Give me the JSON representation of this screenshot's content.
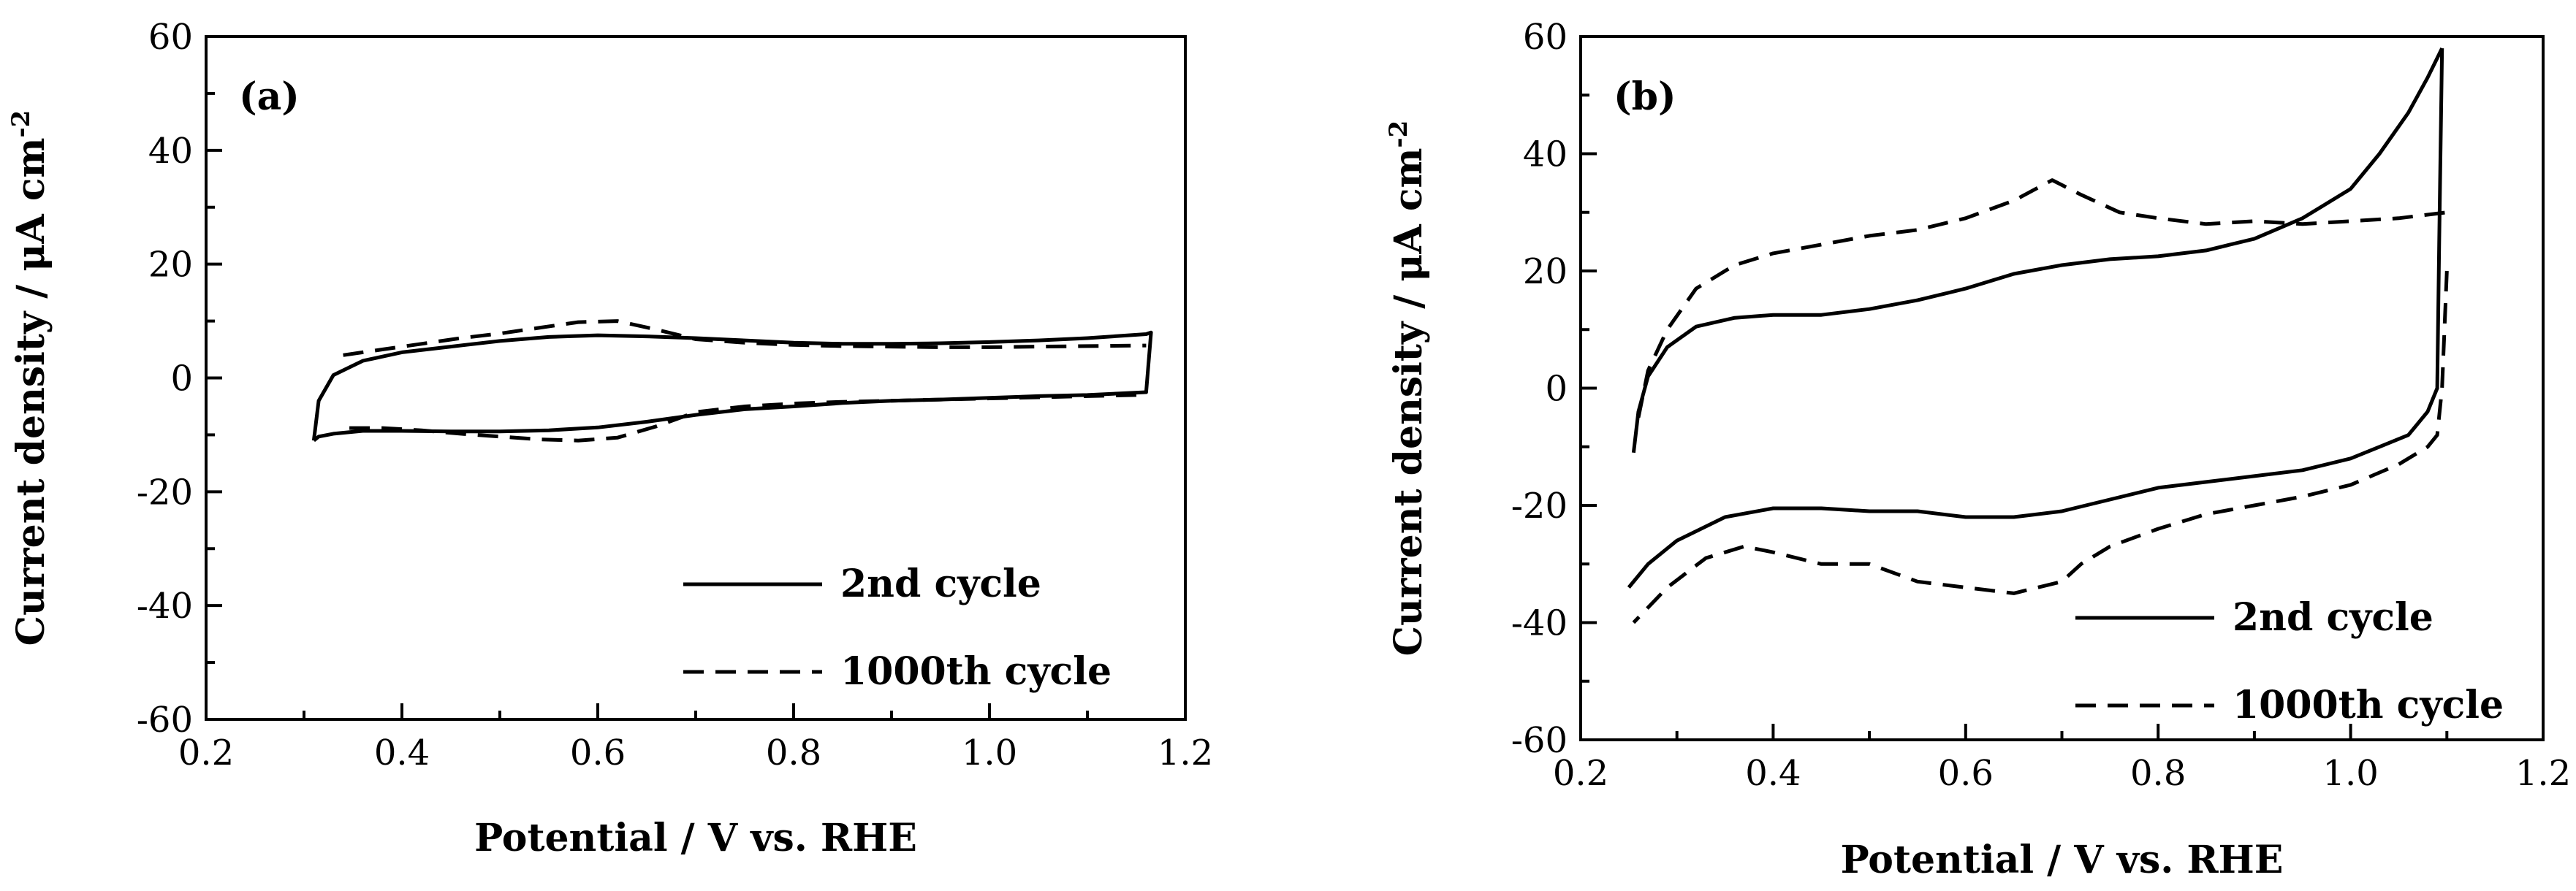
{
  "chart_data": [
    {
      "type": "line",
      "panel_label": "(a)",
      "xlabel": "Potential / V vs. RHE",
      "ylabel": "Current density / μA cm",
      "ylabel_sup": "-2",
      "xlim": [
        0.2,
        1.2
      ],
      "ylim": [
        -60,
        60
      ],
      "xticks": [
        0.2,
        0.4,
        0.6,
        0.8,
        1.0,
        1.2
      ],
      "xtick_labels": [
        "0.2",
        "0.4",
        "0.6",
        "0.8",
        "1.0",
        "1.2"
      ],
      "yticks": [
        -60,
        -40,
        -20,
        0,
        20,
        40,
        60
      ],
      "ytick_labels": [
        "-60",
        "-40",
        "-20",
        "0",
        "20",
        "40",
        "60"
      ],
      "legend": {
        "position": "bottom-right",
        "entries": [
          "2nd cycle",
          "1000th cycle"
        ]
      },
      "series": [
        {
          "name": "2nd cycle",
          "style": "solid",
          "x": [
            0.31,
            0.315,
            0.33,
            0.36,
            0.4,
            0.45,
            0.5,
            0.55,
            0.6,
            0.65,
            0.7,
            0.75,
            0.8,
            0.85,
            0.9,
            0.95,
            1.0,
            1.05,
            1.1,
            1.16,
            1.165,
            1.16,
            1.1,
            1.05,
            1.0,
            0.95,
            0.9,
            0.85,
            0.8,
            0.75,
            0.7,
            0.65,
            0.6,
            0.55,
            0.5,
            0.45,
            0.4,
            0.36,
            0.33,
            0.315,
            0.31
          ],
          "y": [
            -11,
            -4,
            0.5,
            3,
            4.5,
            5.5,
            6.5,
            7.2,
            7.5,
            7.3,
            7,
            6.6,
            6.2,
            6,
            6,
            6.1,
            6.3,
            6.6,
            7,
            7.7,
            8,
            -2.5,
            -3,
            -3.2,
            -3.5,
            -3.8,
            -4,
            -4.4,
            -5,
            -5.5,
            -6.5,
            -7.7,
            -8.7,
            -9.2,
            -9.4,
            -9.4,
            -9.3,
            -9.3,
            -9.8,
            -10.3,
            -11
          ]
        },
        {
          "name": "1000th cycle",
          "style": "dashed",
          "x": [
            0.34,
            0.38,
            0.42,
            0.46,
            0.5,
            0.54,
            0.58,
            0.62,
            0.66,
            0.7,
            0.75,
            0.8,
            0.85,
            0.9,
            0.95,
            1.0,
            1.05,
            1.1,
            1.15,
            1.16
          ],
          "y": [
            4,
            5,
            6,
            7,
            7.8,
            8.8,
            9.8,
            10,
            8.5,
            6.8,
            6.2,
            5.8,
            5.6,
            5.5,
            5.4,
            5.4,
            5.5,
            5.6,
            5.7,
            5.7
          ],
          "x2": [
            1.15,
            1.1,
            1.05,
            1.0,
            0.95,
            0.9,
            0.85,
            0.8,
            0.75,
            0.7,
            0.66,
            0.62,
            0.58,
            0.54,
            0.5,
            0.46,
            0.42,
            0.38,
            0.34
          ],
          "y2": [
            -3,
            -3.2,
            -3.4,
            -3.6,
            -3.8,
            -4,
            -4.2,
            -4.5,
            -5,
            -6,
            -8.5,
            -10.5,
            -11,
            -10.8,
            -10.3,
            -9.8,
            -9.2,
            -8.8,
            -8.8
          ]
        }
      ]
    },
    {
      "type": "line",
      "panel_label": "(b)",
      "xlabel": "Potential / V vs. RHE",
      "ylabel": "Current density / μA cm",
      "ylabel_sup": "-2",
      "xlim": [
        0.2,
        1.2
      ],
      "ylim": [
        -60,
        60
      ],
      "xticks": [
        0.2,
        0.4,
        0.6,
        0.8,
        1.0,
        1.2
      ],
      "xtick_labels": [
        "0.2",
        "0.4",
        "0.6",
        "0.8",
        "1.0",
        "1.2"
      ],
      "yticks": [
        -60,
        -40,
        -20,
        0,
        20,
        40,
        60
      ],
      "ytick_labels": [
        "-60",
        "-40",
        "-20",
        "0",
        "20",
        "40",
        "60"
      ],
      "legend": {
        "position": "bottom-right",
        "entries": [
          "2nd cycle",
          "1000th cycle"
        ]
      },
      "series": [
        {
          "name": "2nd cycle",
          "style": "solid",
          "x": [
            0.255,
            0.26,
            0.27,
            0.29,
            0.32,
            0.36,
            0.4,
            0.45,
            0.5,
            0.55,
            0.6,
            0.65,
            0.7,
            0.75,
            0.8,
            0.85,
            0.9,
            0.95,
            1.0,
            1.03,
            1.06,
            1.08,
            1.095
          ],
          "y": [
            -11,
            -4,
            2,
            7,
            10.5,
            12,
            12.5,
            12.5,
            13.5,
            15,
            17,
            19.5,
            21,
            22,
            22.5,
            23.5,
            25.5,
            29,
            34,
            40,
            47,
            53,
            58
          ],
          "x2": [
            1.095,
            1.092,
            1.09,
            1.08,
            1.06,
            1.03,
            1.0,
            0.95,
            0.9,
            0.85,
            0.8,
            0.75,
            0.7,
            0.65,
            0.6,
            0.55,
            0.5,
            0.45,
            0.4,
            0.35,
            0.3,
            0.27,
            0.25
          ],
          "y2": [
            58,
            25,
            0,
            -4,
            -8,
            -10,
            -12,
            -14,
            -15,
            -16,
            -17,
            -19,
            -21,
            -22,
            -22,
            -21,
            -21,
            -20.5,
            -20.5,
            -22,
            -26,
            -30,
            -34
          ]
        },
        {
          "name": "1000th cycle",
          "style": "dashed",
          "x": [
            0.26,
            0.27,
            0.29,
            0.32,
            0.36,
            0.4,
            0.45,
            0.5,
            0.55,
            0.6,
            0.65,
            0.69,
            0.72,
            0.76,
            0.8,
            0.85,
            0.9,
            0.95,
            1.0,
            1.05,
            1.1
          ],
          "y": [
            -5,
            3,
            10,
            17,
            21,
            23,
            24.5,
            26,
            27,
            29,
            32,
            35.5,
            33,
            30,
            29,
            28,
            28.5,
            28,
            28.5,
            29,
            30
          ],
          "x2": [
            1.1,
            1.095,
            1.09,
            1.08,
            1.05,
            1.0,
            0.95,
            0.9,
            0.85,
            0.8,
            0.75,
            0.72,
            0.7,
            0.65,
            0.6,
            0.55,
            0.5,
            0.45,
            0.4,
            0.37,
            0.33,
            0.29,
            0.255
          ],
          "y2": [
            20,
            0,
            -8,
            -10,
            -13,
            -16.5,
            -18.5,
            -20,
            -21.5,
            -24,
            -27,
            -30,
            -33,
            -35,
            -34,
            -33,
            -30,
            -30,
            -28,
            -27,
            -29,
            -34,
            -40
          ]
        }
      ]
    }
  ]
}
